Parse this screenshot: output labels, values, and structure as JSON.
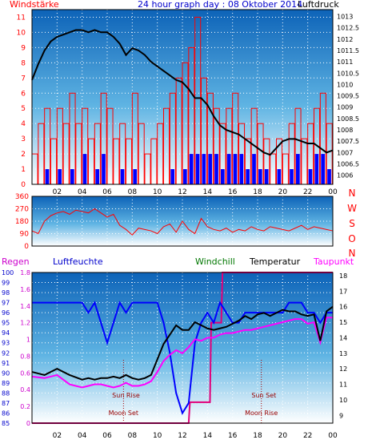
{
  "chart_data": [
    {
      "type": "line",
      "title": "24 hour graph day : 08 Oktober 2014",
      "left_label": "Windstärke",
      "right_label": "Luftdruck",
      "x_ticks": [
        "02",
        "04",
        "06",
        "08",
        "10",
        "12",
        "14",
        "16",
        "18",
        "20",
        "22",
        "00"
      ],
      "x_range_hours": [
        0,
        24
      ],
      "y_left_ticks": [
        "0",
        "1",
        "2",
        "3",
        "4",
        "5",
        "6",
        "7",
        "8",
        "9",
        "10",
        "11"
      ],
      "y_left_range": [
        0,
        11.5
      ],
      "y_right_ticks": [
        "1006",
        "1006.5",
        "1007",
        "1007.5",
        "1008",
        "1008.5",
        "1009",
        "1009.5",
        "1010",
        "1010.5",
        "1011",
        "1011.5",
        "1012",
        "1012.5",
        "1013"
      ],
      "y_right_range": [
        1005.6,
        1013.3
      ],
      "grid": true,
      "colors": {
        "gust": "#ff0000",
        "wind": "#0000ff",
        "pressure": "#000000",
        "axis_left": "#ff0000",
        "axis_right": "#000000",
        "title": "#0000cc"
      },
      "series": [
        {
          "key": "pressure",
          "color": "#000000",
          "x": [
            0,
            0.5,
            1,
            1.5,
            2,
            2.5,
            3,
            3.5,
            4,
            4.5,
            5,
            5.5,
            6,
            6.5,
            7,
            7.5,
            8,
            8.5,
            9,
            9.5,
            10,
            10.5,
            11,
            11.5,
            12,
            12.5,
            13,
            13.5,
            14,
            14.5,
            15,
            15.5,
            16,
            16.5,
            17,
            17.5,
            18,
            18.5,
            19,
            19.5,
            20,
            20.5,
            21,
            21.5,
            22,
            22.5,
            23,
            23.5,
            24
          ],
          "y": [
            1010.2,
            1010.9,
            1011.5,
            1011.9,
            1012.1,
            1012.2,
            1012.3,
            1012.4,
            1012.4,
            1012.3,
            1012.4,
            1012.3,
            1012.3,
            1012.1,
            1011.8,
            1011.3,
            1011.6,
            1011.5,
            1011.3,
            1011.0,
            1010.8,
            1010.6,
            1010.4,
            1010.2,
            1010.1,
            1009.8,
            1009.4,
            1009.4,
            1009.1,
            1008.6,
            1008.2,
            1008.0,
            1007.9,
            1007.8,
            1007.6,
            1007.4,
            1007.2,
            1007.0,
            1006.9,
            1007.2,
            1007.5,
            1007.6,
            1007.6,
            1007.5,
            1007.4,
            1007.4,
            1007.2,
            1007.0,
            1007.1
          ]
        },
        {
          "key": "gust",
          "color": "#ff0000",
          "x": [
            0,
            0.5,
            1,
            1.5,
            2,
            2.5,
            3,
            3.5,
            4,
            4.5,
            5,
            5.5,
            6,
            6.5,
            7,
            7.5,
            8,
            8.5,
            9,
            9.5,
            10,
            10.5,
            11,
            11.5,
            12,
            12.5,
            13,
            13.5,
            14,
            14.5,
            15,
            15.5,
            16,
            16.5,
            17,
            17.5,
            18,
            18.5,
            19,
            19.5,
            20,
            20.5,
            21,
            21.5,
            22,
            22.5,
            23,
            23.5,
            24
          ],
          "y": [
            2,
            4,
            5,
            3,
            5,
            4,
            6,
            4,
            5,
            3,
            4,
            6,
            5,
            3,
            4,
            3,
            6,
            4,
            2,
            3,
            4,
            5,
            6,
            7,
            8,
            9,
            11,
            7,
            6,
            5,
            4,
            5,
            6,
            4,
            3,
            5,
            4,
            3,
            2,
            3,
            2,
            4,
            5,
            3,
            4,
            5,
            6,
            4,
            2
          ]
        },
        {
          "key": "wind",
          "color": "#0000ff",
          "x": [
            0,
            0.5,
            1,
            1.5,
            2,
            2.5,
            3,
            3.5,
            4,
            4.5,
            5,
            5.5,
            6,
            6.5,
            7,
            7.5,
            8,
            8.5,
            9,
            9.5,
            10,
            10.5,
            11,
            11.5,
            12,
            12.5,
            13,
            13.5,
            14,
            14.5,
            15,
            15.5,
            16,
            16.5,
            17,
            17.5,
            18,
            18.5,
            19,
            19.5,
            20,
            20.5,
            21,
            21.5,
            22,
            22.5,
            23,
            23.5,
            24
          ],
          "y": [
            0,
            0,
            1,
            0,
            1,
            0,
            1,
            0,
            2,
            0,
            1,
            2,
            0,
            0,
            1,
            0,
            1,
            0,
            0,
            0,
            0,
            0,
            1,
            0,
            1,
            2,
            2,
            2,
            2,
            2,
            1,
            2,
            2,
            2,
            1,
            2,
            1,
            1,
            0,
            1,
            0,
            1,
            2,
            0,
            1,
            2,
            2,
            1,
            0
          ]
        }
      ]
    },
    {
      "type": "line",
      "right_labels": [
        "N",
        "W",
        "S",
        "O",
        "N"
      ],
      "y_ticks": [
        "360",
        "270",
        "180",
        "90",
        "0"
      ],
      "y_range": [
        0,
        360
      ],
      "x_range_hours": [
        0,
        24
      ],
      "grid": true,
      "series": [
        {
          "key": "direction",
          "color": "#ff0000",
          "x": [
            0,
            0.5,
            1,
            1.5,
            2,
            2.5,
            3,
            3.5,
            4,
            4.5,
            5,
            5.5,
            6,
            6.5,
            7,
            7.5,
            8,
            8.5,
            9,
            9.5,
            10,
            10.5,
            11,
            11.5,
            12,
            12.5,
            13,
            13.5,
            14,
            14.5,
            15,
            15.5,
            16,
            16.5,
            17,
            17.5,
            18,
            18.5,
            19,
            19.5,
            20,
            20.5,
            21,
            21.5,
            22,
            22.5,
            23,
            23.5,
            24
          ],
          "y": [
            110,
            90,
            180,
            220,
            240,
            250,
            230,
            260,
            250,
            240,
            270,
            240,
            210,
            230,
            150,
            120,
            80,
            130,
            120,
            110,
            90,
            140,
            160,
            100,
            180,
            120,
            90,
            200,
            140,
            120,
            110,
            130,
            100,
            120,
            110,
            140,
            120,
            110,
            140,
            130,
            120,
            110,
            130,
            150,
            120,
            140,
            130,
            120,
            110
          ]
        }
      ]
    },
    {
      "type": "line",
      "labels": {
        "rain": "Regen",
        "humidity": "Luftfeuchte",
        "windchill": "Windchill",
        "temperature": "Temperatur",
        "dewpoint": "Taupunkt"
      },
      "y_left_ticks": [
        "100",
        "99",
        "98",
        "97",
        "96",
        "95",
        "94",
        "93",
        "92",
        "91",
        "90",
        "89",
        "88",
        "87",
        "86",
        "85"
      ],
      "y_left_range": [
        85,
        100
      ],
      "y_rain_ticks": [
        "1.8",
        "1.6",
        "1.4",
        "1.2",
        "1",
        "0.8",
        "0.6",
        "0.4",
        "0.2",
        "0"
      ],
      "y_rain_range": [
        0,
        1.8
      ],
      "y_right_ticks": [
        "18",
        "17",
        "16",
        "15",
        "14",
        "13",
        "12",
        "11",
        "10",
        "9"
      ],
      "y_right_range": [
        8.5,
        18.2
      ],
      "x_ticks": [
        "02",
        "04",
        "06",
        "08",
        "10",
        "12",
        "14",
        "16",
        "18",
        "20",
        "22",
        "00"
      ],
      "x_range_hours": [
        0,
        24
      ],
      "annotations": [
        {
          "label": "Sun Rise",
          "hour": 7.5
        },
        {
          "label": "Moon Set",
          "hour": 7.3
        },
        {
          "label": "Sun Set",
          "hour": 18.5
        },
        {
          "label": "Moon Rise",
          "hour": 18.3
        }
      ],
      "grid": true,
      "series": [
        {
          "key": "humidity",
          "color": "#0000ff",
          "x": [
            0,
            1,
            2,
            3,
            4,
            4.5,
            5,
            5.5,
            6,
            6.5,
            7,
            7.5,
            8,
            8.5,
            9,
            9.5,
            10,
            10.5,
            11,
            11.5,
            12,
            12.5,
            13,
            13.5,
            14,
            14.5,
            15,
            15.5,
            16,
            16.5,
            17,
            17.5,
            18,
            18.5,
            19,
            19.5,
            20,
            20.5,
            21,
            21.5,
            22,
            22.5,
            23,
            23.5,
            24
          ],
          "y": [
            97,
            97,
            97,
            97,
            97,
            96,
            97,
            95,
            93,
            95,
            97,
            96,
            97,
            97,
            97,
            97,
            97,
            95,
            92,
            88,
            86,
            87,
            93,
            95,
            96,
            95,
            97,
            96,
            95,
            95,
            96,
            96,
            96,
            96,
            96,
            96,
            96,
            97,
            97,
            97,
            96,
            96,
            95,
            96,
            96
          ]
        },
        {
          "key": "temperature",
          "color": "#000000",
          "x": [
            0,
            1,
            2,
            3,
            4,
            4.5,
            5,
            5.5,
            6,
            6.5,
            7,
            7.5,
            8,
            8.5,
            9,
            9.5,
            10,
            10.5,
            11,
            11.5,
            12,
            12.5,
            13,
            13.5,
            14,
            14.5,
            15,
            15.5,
            16,
            16.5,
            17,
            17.5,
            18,
            18.5,
            19,
            19.5,
            20,
            20.5,
            21,
            21.5,
            22,
            22.5,
            23,
            23.5,
            24
          ],
          "y": [
            11.8,
            11.6,
            12.0,
            11.6,
            11.3,
            11.4,
            11.3,
            11.4,
            11.4,
            11.5,
            11.4,
            11.6,
            11.4,
            11.3,
            11.4,
            11.6,
            12.6,
            13.6,
            14.2,
            14.8,
            14.5,
            14.5,
            15.0,
            14.8,
            14.6,
            14.5,
            14.6,
            14.7,
            14.9,
            15.1,
            15.4,
            15.2,
            15.5,
            15.6,
            15.4,
            15.6,
            15.8,
            15.7,
            15.7,
            15.5,
            15.4,
            15.5,
            13.8,
            15.7,
            16.0
          ]
        },
        {
          "key": "dewpoint",
          "color": "#ff00ff",
          "x": [
            0,
            1,
            2,
            3,
            4,
            4.5,
            5,
            5.5,
            6,
            6.5,
            7,
            7.5,
            8,
            8.5,
            9,
            9.5,
            10,
            10.5,
            11,
            11.5,
            12,
            12.5,
            13,
            13.5,
            14,
            14.5,
            15,
            15.5,
            16,
            16.5,
            17,
            17.5,
            18,
            18.5,
            19,
            19.5,
            20,
            20.5,
            21,
            21.5,
            22,
            22.5,
            23,
            23.5,
            24
          ],
          "y": [
            11.5,
            11.4,
            11.6,
            11.0,
            10.8,
            10.9,
            11.0,
            11.0,
            10.9,
            10.8,
            10.9,
            11.1,
            10.9,
            10.9,
            11.0,
            11.2,
            11.8,
            12.5,
            12.9,
            13.2,
            13.0,
            13.4,
            13.9,
            13.8,
            14.0,
            14.0,
            14.2,
            14.3,
            14.3,
            14.4,
            14.5,
            14.5,
            14.6,
            14.7,
            14.8,
            14.9,
            15.0,
            15.1,
            15.2,
            15.2,
            14.9,
            15.0,
            13.7,
            15.3,
            15.3
          ]
        },
        {
          "key": "rain",
          "color": "#e0007a",
          "x": [
            0,
            12.5,
            12.6,
            14.2,
            14.3,
            15.1,
            15.2,
            24
          ],
          "y": [
            0,
            0,
            0.25,
            0.25,
            1.2,
            1.2,
            1.8,
            1.8
          ]
        }
      ]
    }
  ]
}
